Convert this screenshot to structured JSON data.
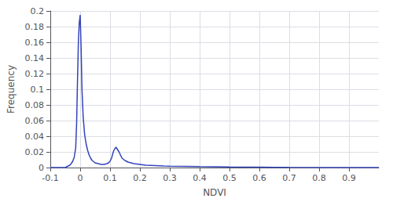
{
  "chart_data": {
    "type": "line",
    "xlabel": "NDVI",
    "ylabel": "Frequency",
    "x": [
      -0.1,
      -0.09,
      -0.085,
      -0.08,
      -0.075,
      -0.07,
      -0.065,
      -0.06,
      -0.055,
      -0.05,
      -0.045,
      -0.04,
      -0.035,
      -0.03,
      -0.025,
      -0.02,
      -0.015,
      -0.012,
      -0.009,
      -0.006,
      -0.003,
      0.0,
      0.003,
      0.006,
      0.01,
      0.015,
      0.02,
      0.025,
      0.03,
      0.035,
      0.04,
      0.05,
      0.06,
      0.07,
      0.08,
      0.09,
      0.095,
      0.1,
      0.105,
      0.108,
      0.11,
      0.113,
      0.116,
      0.12,
      0.125,
      0.13,
      0.135,
      0.14,
      0.15,
      0.16,
      0.17,
      0.18,
      0.2,
      0.22,
      0.25,
      0.28,
      0.3,
      0.35,
      0.4,
      0.45,
      0.5,
      0.55,
      0.6,
      0.65,
      0.7,
      0.8,
      0.9,
      1.0
    ],
    "values": [
      0.0,
      0.0,
      0.0,
      0.0,
      0.0,
      0.0,
      0.0,
      0.0,
      0.0,
      0.0,
      0.001,
      0.002,
      0.003,
      0.005,
      0.008,
      0.013,
      0.025,
      0.055,
      0.11,
      0.16,
      0.185,
      0.195,
      0.155,
      0.1,
      0.065,
      0.042,
      0.03,
      0.022,
      0.016,
      0.012,
      0.009,
      0.006,
      0.005,
      0.004,
      0.004,
      0.005,
      0.006,
      0.008,
      0.012,
      0.016,
      0.019,
      0.022,
      0.024,
      0.026,
      0.023,
      0.02,
      0.016,
      0.012,
      0.009,
      0.007,
      0.006,
      0.005,
      0.004,
      0.003,
      0.0025,
      0.002,
      0.0018,
      0.0015,
      0.0012,
      0.001,
      0.0007,
      0.0005,
      0.0004,
      0.0003,
      0.0002,
      0.0001,
      0.0001,
      0.0
    ],
    "color": "#3344bb",
    "xlim": [
      -0.1,
      1.0
    ],
    "ylim": [
      0,
      0.2
    ],
    "xticks": [
      -0.1,
      0,
      0.1,
      0.2,
      0.3,
      0.4,
      0.5,
      0.6,
      0.7,
      0.8,
      0.9
    ],
    "yticks": [
      0,
      0.02,
      0.04,
      0.06,
      0.08,
      0.1,
      0.12,
      0.14,
      0.16,
      0.18,
      0.2
    ],
    "grid": true
  }
}
